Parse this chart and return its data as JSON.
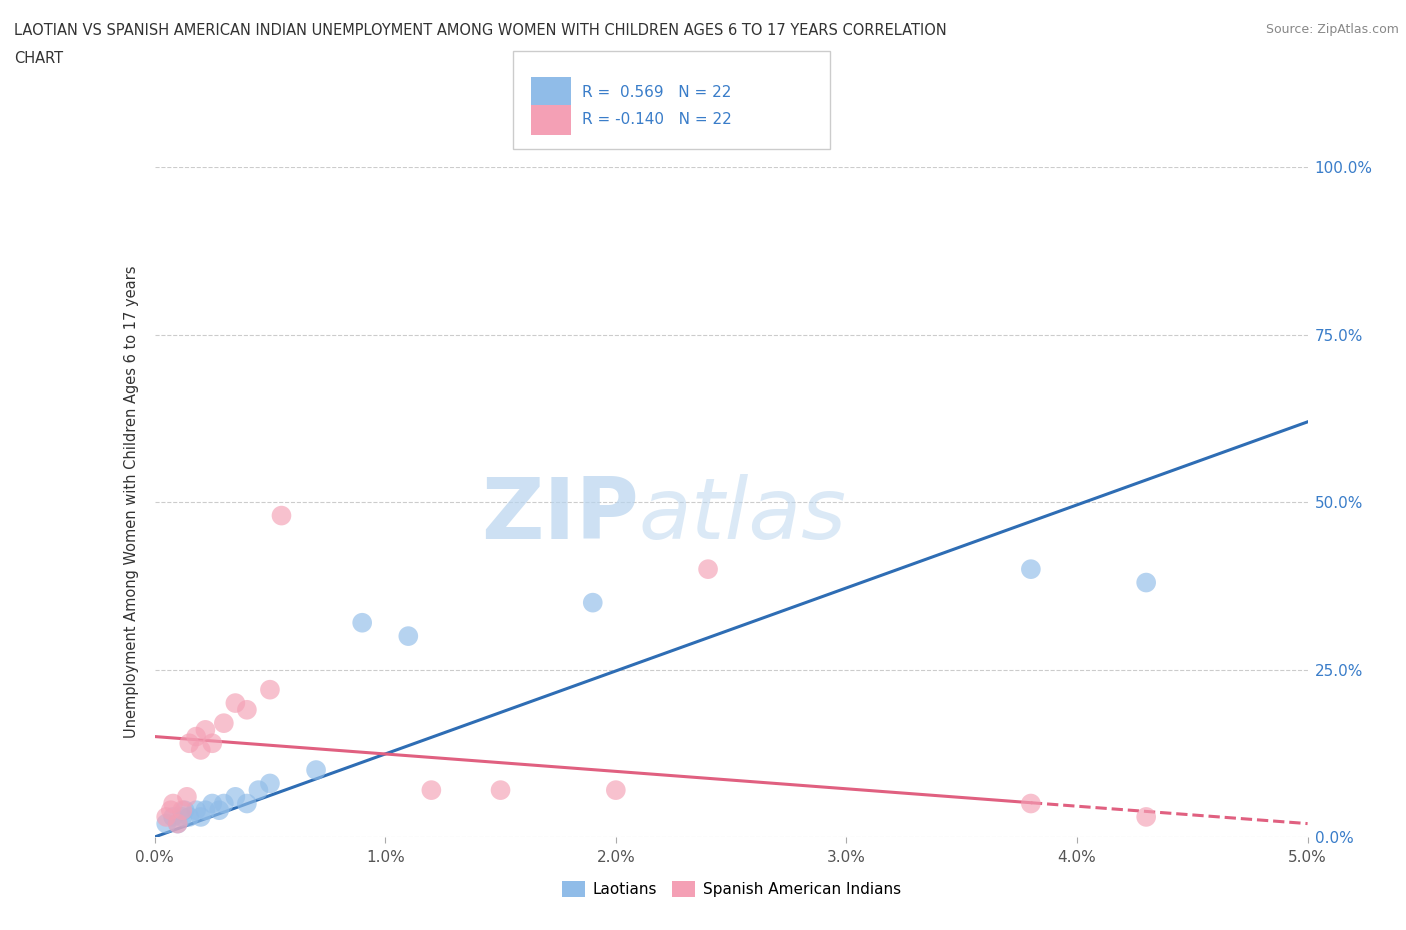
{
  "title_line1": "LAOTIAN VS SPANISH AMERICAN INDIAN UNEMPLOYMENT AMONG WOMEN WITH CHILDREN AGES 6 TO 17 YEARS CORRELATION",
  "title_line2": "CHART",
  "source": "Source: ZipAtlas.com",
  "ylabel": "Unemployment Among Women with Children Ages 6 to 17 years",
  "xlim": [
    0.0,
    5.0
  ],
  "ylim": [
    0.0,
    1.0
  ],
  "yticks": [
    0.0,
    0.25,
    0.5,
    0.75,
    1.0
  ],
  "ytick_labels": [
    "0.0%",
    "25.0%",
    "50.0%",
    "75.0%",
    "100.0%"
  ],
  "xticks": [
    0.0,
    1.0,
    2.0,
    3.0,
    4.0,
    5.0
  ],
  "xtick_labels": [
    "0.0%",
    "1.0%",
    "2.0%",
    "3.0%",
    "4.0%",
    "5.0%"
  ],
  "watermark_zip": "ZIP",
  "watermark_atlas": "atlas",
  "laotian_color": "#90bce8",
  "spanish_color": "#f4a0b5",
  "laotian_trend_color": "#2e6db4",
  "spanish_trend_color": "#e06080",
  "background_color": "#ffffff",
  "laotian_scatter": [
    [
      0.05,
      0.02
    ],
    [
      0.08,
      0.03
    ],
    [
      0.1,
      0.02
    ],
    [
      0.12,
      0.03
    ],
    [
      0.13,
      0.04
    ],
    [
      0.15,
      0.03
    ],
    [
      0.18,
      0.04
    ],
    [
      0.2,
      0.03
    ],
    [
      0.22,
      0.04
    ],
    [
      0.25,
      0.05
    ],
    [
      0.28,
      0.04
    ],
    [
      0.3,
      0.05
    ],
    [
      0.35,
      0.06
    ],
    [
      0.4,
      0.05
    ],
    [
      0.45,
      0.07
    ],
    [
      0.5,
      0.08
    ],
    [
      0.7,
      0.1
    ],
    [
      0.9,
      0.32
    ],
    [
      1.1,
      0.3
    ],
    [
      1.9,
      0.35
    ],
    [
      3.8,
      0.4
    ],
    [
      4.3,
      0.38
    ]
  ],
  "spanish_scatter": [
    [
      0.05,
      0.03
    ],
    [
      0.07,
      0.04
    ],
    [
      0.08,
      0.05
    ],
    [
      0.1,
      0.02
    ],
    [
      0.12,
      0.04
    ],
    [
      0.14,
      0.06
    ],
    [
      0.15,
      0.14
    ],
    [
      0.18,
      0.15
    ],
    [
      0.2,
      0.13
    ],
    [
      0.22,
      0.16
    ],
    [
      0.25,
      0.14
    ],
    [
      0.3,
      0.17
    ],
    [
      0.35,
      0.2
    ],
    [
      0.4,
      0.19
    ],
    [
      0.5,
      0.22
    ],
    [
      0.55,
      0.48
    ],
    [
      1.2,
      0.07
    ],
    [
      1.5,
      0.07
    ],
    [
      2.0,
      0.07
    ],
    [
      2.4,
      0.4
    ],
    [
      3.8,
      0.05
    ],
    [
      4.3,
      0.03
    ]
  ],
  "laotian_trend_x": [
    0.0,
    5.0
  ],
  "laotian_trend_y": [
    0.0,
    0.62
  ],
  "spanish_trend_x": [
    0.0,
    5.0
  ],
  "spanish_trend_y": [
    0.15,
    0.02
  ],
  "spanish_trend_solid_end": 3.8,
  "legend_box_text1": "R =  0.569   N = 22",
  "legend_box_text2": "R = -0.140   N = 22"
}
